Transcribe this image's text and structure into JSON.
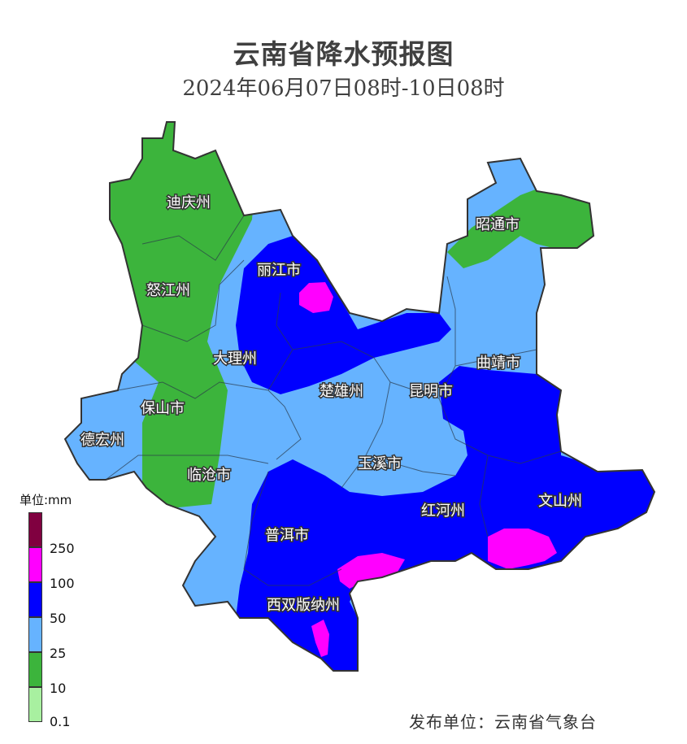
{
  "title": "云南省降水预报图",
  "subtitle": "2024年06月07日08时-10日08时",
  "labels": {
    "diqing": "迪庆州",
    "nujiang": "怒江州",
    "lijiang": "丽江市",
    "zhaotong": "昭通市",
    "dali": "大理州",
    "qujing": "曲靖市",
    "baoshan": "保山市",
    "chuxiong": "楚雄州",
    "kunming": "昆明市",
    "dehong": "德宏州",
    "lincang": "临沧市",
    "yuxi": "玉溪市",
    "honghe": "红河州",
    "wenshan": "文山州",
    "puer": "普洱市",
    "xishuangbanna": "西双版纳州"
  },
  "legend": {
    "unit": "单位:mm",
    "bands": [
      {
        "color": "#800040",
        "label": ""
      },
      {
        "color": "#ff00ff",
        "label": "250"
      },
      {
        "color": "#0000ff",
        "label": "100"
      },
      {
        "color": "#66b3ff",
        "label": "50"
      },
      {
        "color": "#3cb43c",
        "label": "25"
      },
      {
        "color": "#a8f0a0",
        "label": "10"
      }
    ],
    "bottom_label": "0.1"
  },
  "footer": "发布单位：云南省气象台"
}
